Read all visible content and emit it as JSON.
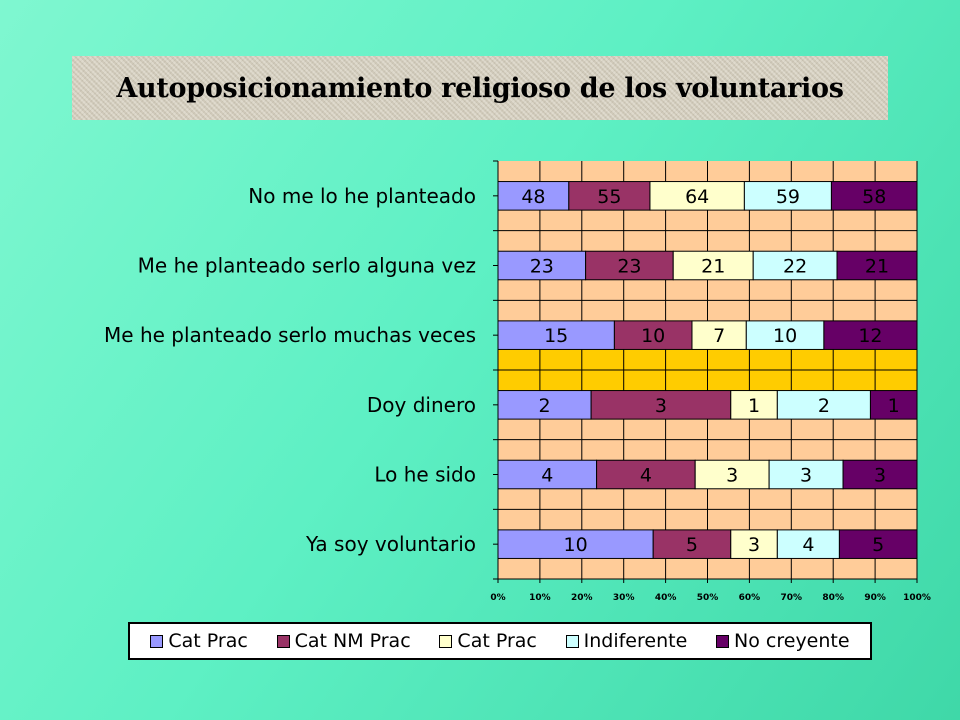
{
  "title": "Autoposicionamiento religioso de los voluntarios",
  "chart_data": {
    "type": "bar",
    "orientation": "horizontal",
    "stacking": "percent",
    "categories": [
      "No me lo he planteado",
      "Me he planteado serlo alguna vez",
      "Me he planteado serlo muchas veces",
      "Doy dinero",
      "Lo he sido",
      "Ya soy voluntario"
    ],
    "series": [
      {
        "name": "Cat Prac",
        "color": "#9999ff",
        "values": [
          48,
          23,
          15,
          2,
          4,
          10
        ]
      },
      {
        "name": "Cat NM Prac",
        "color": "#993366",
        "values": [
          55,
          23,
          10,
          3,
          4,
          5
        ]
      },
      {
        "name": "Cat Prac",
        "color": "#ffffcc",
        "values": [
          64,
          21,
          7,
          1,
          3,
          3
        ]
      },
      {
        "name": "Indiferente",
        "color": "#ccffff",
        "values": [
          59,
          22,
          10,
          2,
          3,
          4
        ]
      },
      {
        "name": "No creyente",
        "color": "#660066",
        "values": [
          58,
          21,
          12,
          1,
          3,
          5
        ]
      }
    ],
    "xticks": [
      "0%",
      "10%",
      "20%",
      "30%",
      "40%",
      "50%",
      "60%",
      "70%",
      "80%",
      "90%",
      "100%"
    ],
    "xlim": [
      0,
      100
    ],
    "grid": true,
    "legend": "bottom",
    "plot_background": "#ffcc99",
    "highlight_band_color": "#ffcc00"
  }
}
